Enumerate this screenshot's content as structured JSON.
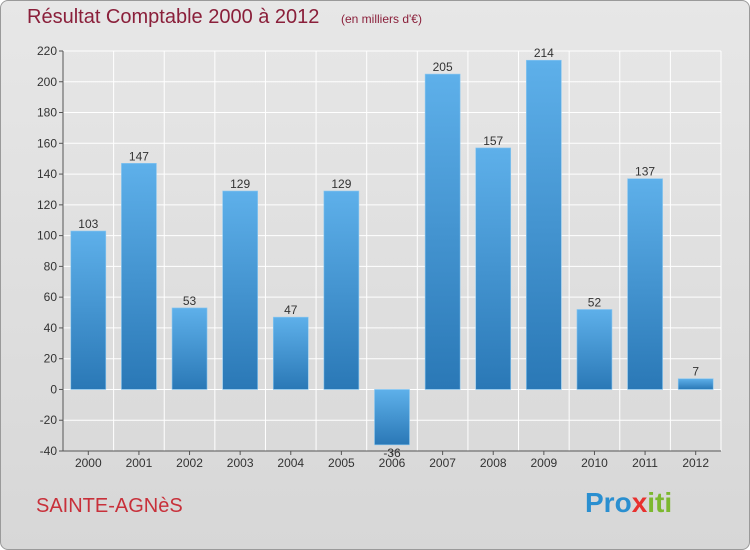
{
  "header": {
    "title": "Résultat Comptable 2000 à 2012",
    "subtitle": "(en milliers d'€)"
  },
  "footer": {
    "location": "SAINTE-AGNèS",
    "brand_parts": [
      "Pro",
      "x",
      "iti"
    ],
    "brand_colors": [
      "#2a8fd0",
      "#e8312f",
      "#7cb82f"
    ]
  },
  "colors": {
    "bar_light": "#5eb0ea",
    "bar_dark": "#2a78b6",
    "grid": "#ffffff",
    "axis": "#555555"
  },
  "chart_data": {
    "type": "bar",
    "title": "Résultat Comptable 2000 à 2012",
    "subtitle": "(en milliers d'€)",
    "xlabel": "",
    "ylabel": "",
    "categories": [
      "2000",
      "2001",
      "2002",
      "2003",
      "2004",
      "2005",
      "2006",
      "2007",
      "2008",
      "2009",
      "2010",
      "2011",
      "2012"
    ],
    "values": [
      103,
      147,
      53,
      129,
      47,
      129,
      -36,
      205,
      157,
      214,
      52,
      137,
      7
    ],
    "value_labels": [
      "103",
      "147",
      "53",
      "129",
      "47",
      "129",
      "-36",
      "205",
      "157",
      "214",
      "52",
      "137",
      "7"
    ],
    "ylim": [
      -40,
      220
    ],
    "yticks": [
      -40,
      -20,
      0,
      20,
      40,
      60,
      80,
      100,
      120,
      140,
      160,
      180,
      200,
      220
    ],
    "grid": true,
    "legend": "none"
  }
}
